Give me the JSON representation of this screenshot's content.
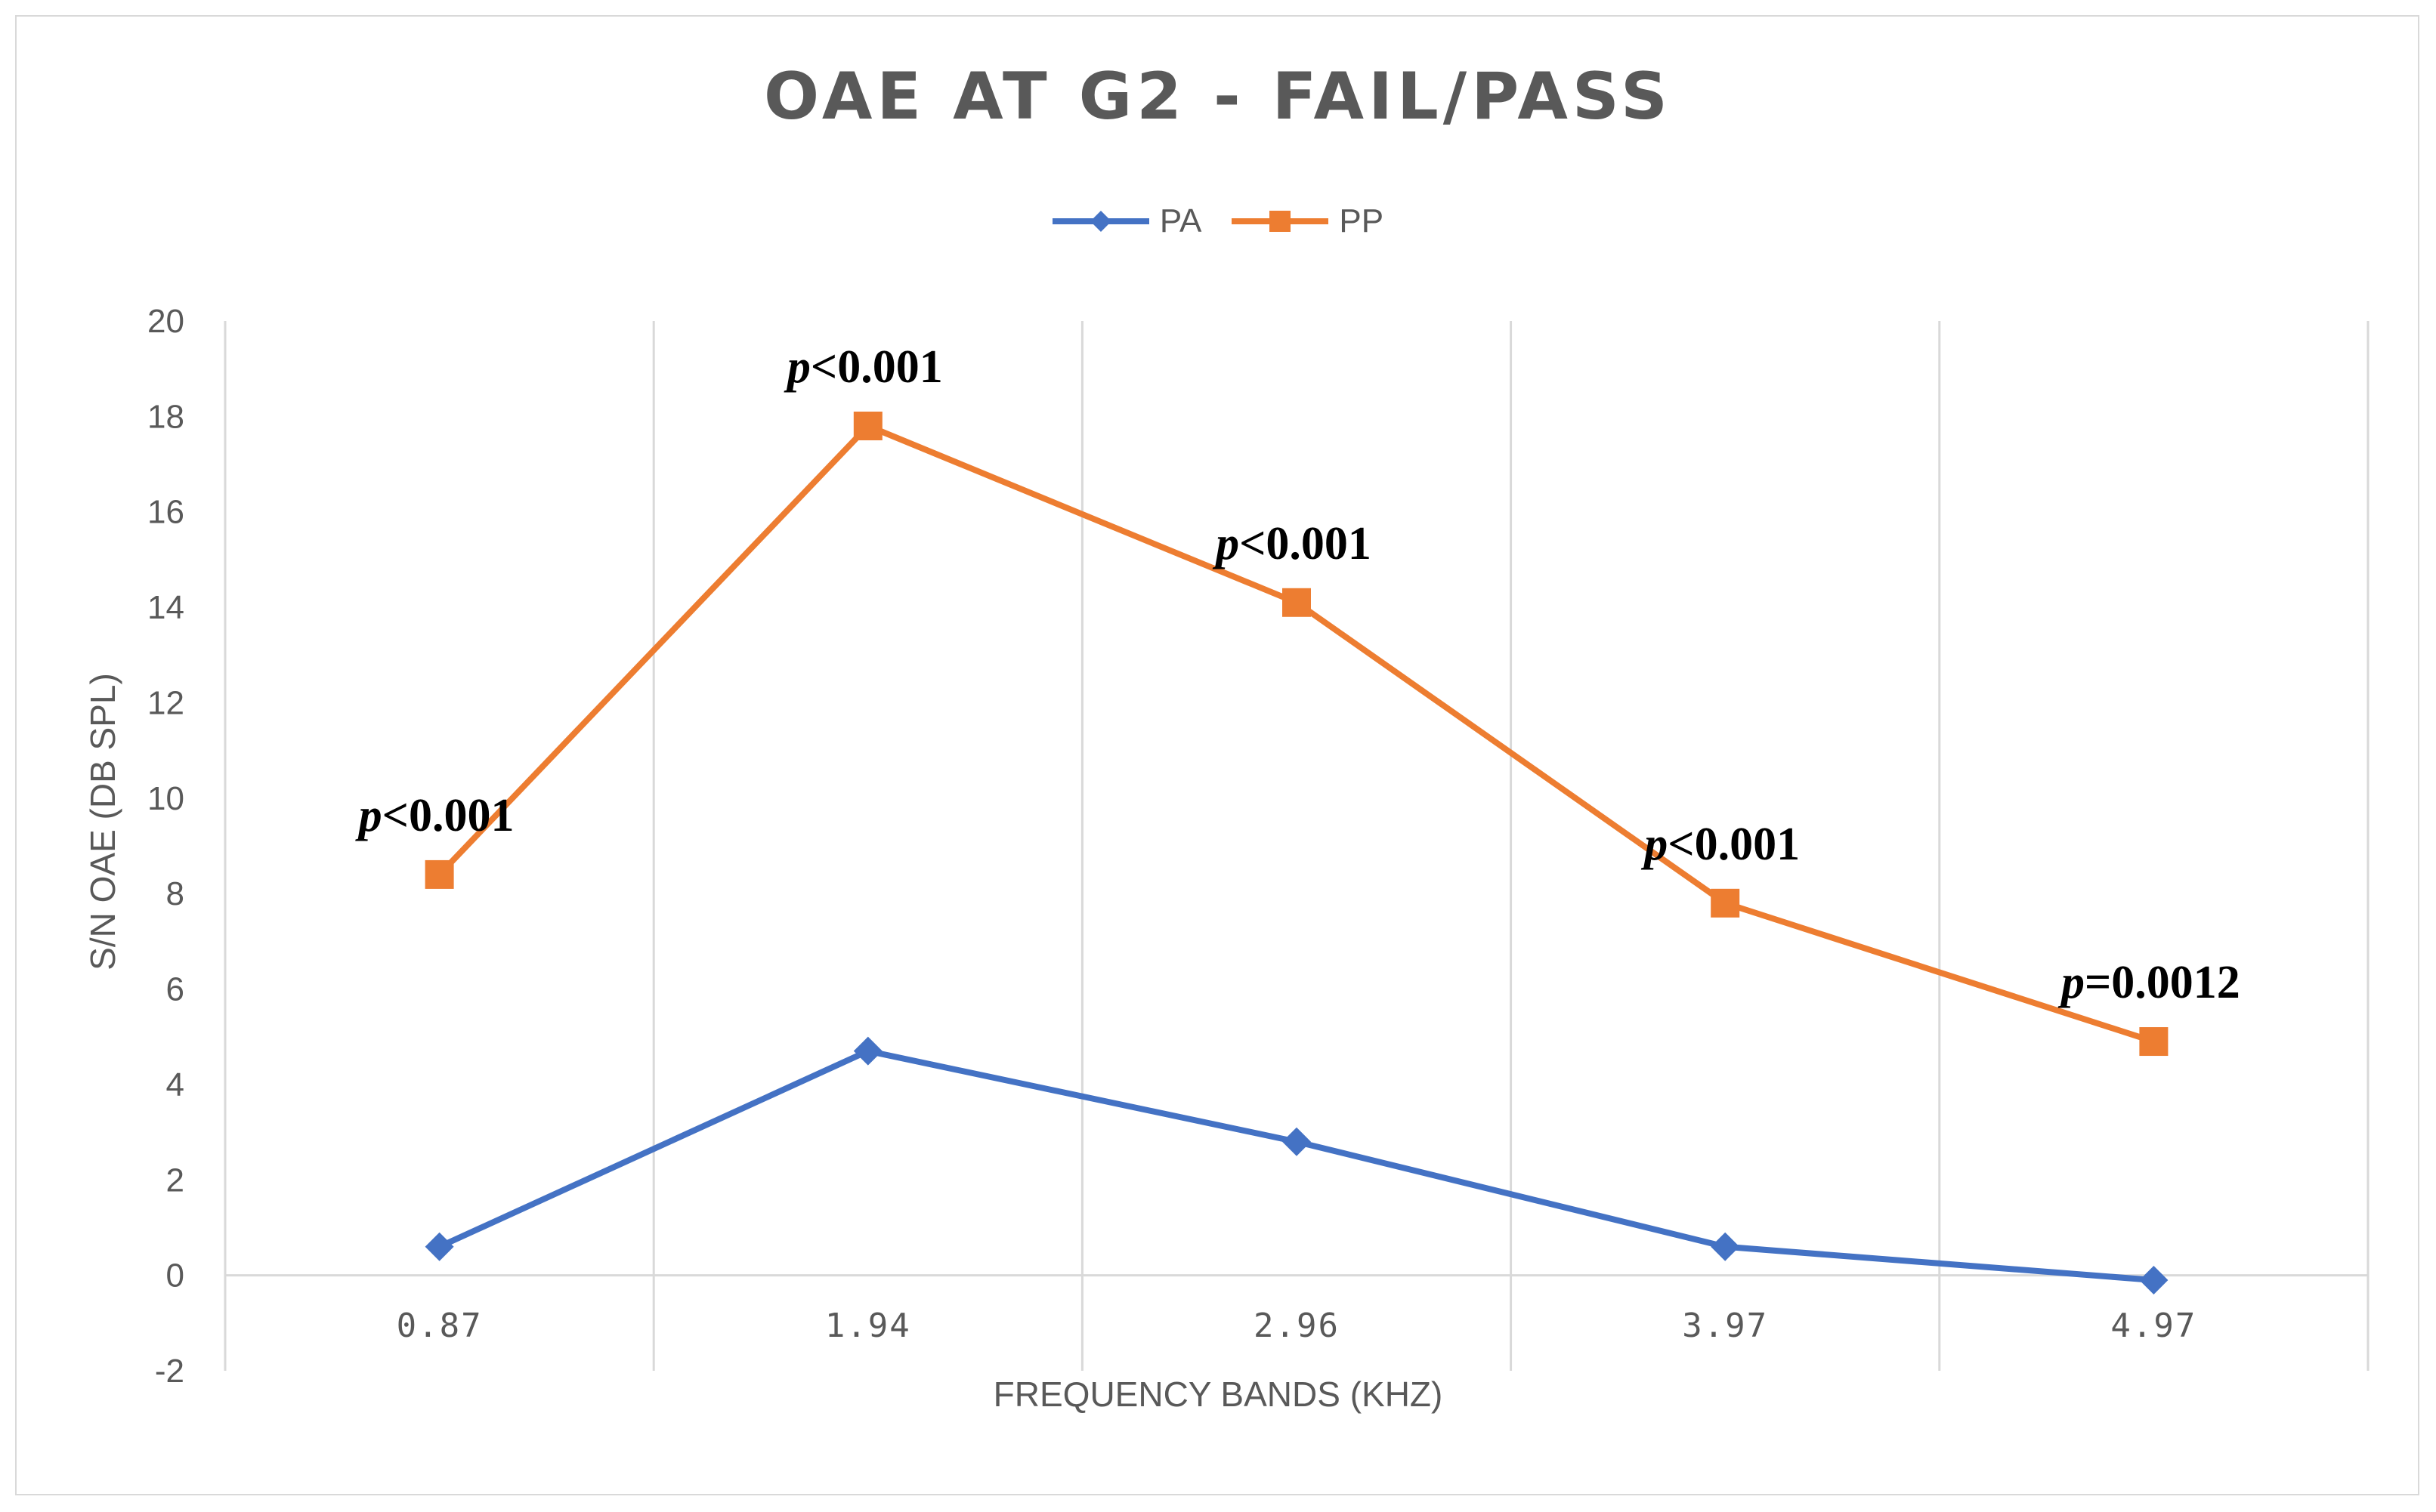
{
  "chart_data": {
    "type": "line",
    "title": "OAE AT G2 - FAIL/PASS",
    "xlabel": "FREQUENCY BANDS (KHZ)",
    "ylabel": "S/N OAE (DB SPL)",
    "categories": [
      "0.87",
      "1.94",
      "2.96",
      "3.97",
      "4.97"
    ],
    "ylim": [
      -2,
      20
    ],
    "yticks": [
      -2,
      0,
      2,
      4,
      6,
      8,
      10,
      12,
      14,
      16,
      18,
      20
    ],
    "grid": "vertical",
    "legend": "top-center",
    "series": [
      {
        "name": "PA",
        "color": "#4472c4",
        "marker": "diamond",
        "values": [
          0.6,
          4.7,
          2.8,
          0.6,
          -0.1
        ]
      },
      {
        "name": "PP",
        "color": "#ed7d31",
        "marker": "square",
        "values": [
          8.4,
          17.8,
          14.1,
          7.8,
          4.9
        ]
      }
    ],
    "annotations": [
      {
        "category": "0.87",
        "label": "<0.001"
      },
      {
        "category": "1.94",
        "label": "<0.001"
      },
      {
        "category": "2.96",
        "label": "<0.001"
      },
      {
        "category": "3.97",
        "label": "<0.001"
      },
      {
        "category": "4.97",
        "label": "=0.0012"
      }
    ],
    "annotation_prefix": "p"
  }
}
